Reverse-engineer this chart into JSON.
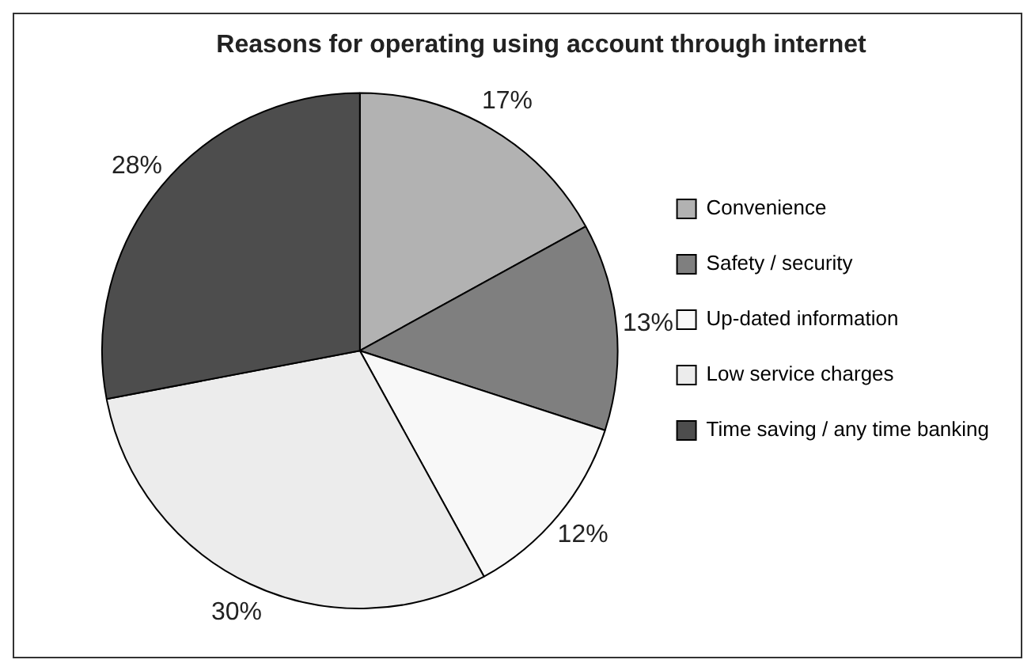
{
  "chart_data": {
    "type": "pie",
    "title": "Reasons for operating using account through internet",
    "categories": [
      "Convenience",
      "Safety / security",
      "Up-dated information",
      "Low service charges",
      "Time saving / any time banking"
    ],
    "values": [
      17,
      13,
      12,
      30,
      28
    ],
    "colors": [
      "#b2b2b2",
      "#7f7f7f",
      "#f8f8f8",
      "#ececec",
      "#4d4d4d"
    ],
    "value_labels": [
      "17%",
      "13%",
      "12%",
      "30%",
      "28%"
    ],
    "legend": "right"
  }
}
